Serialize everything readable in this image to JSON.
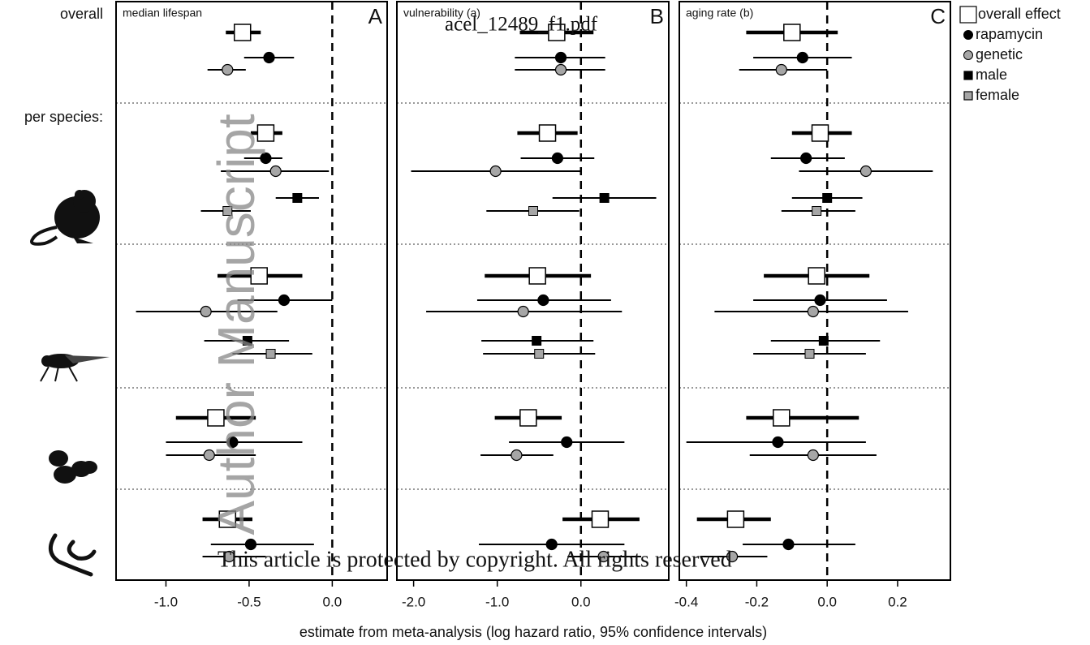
{
  "chart_data": {
    "type": "forest",
    "xlabel": "estimate from meta-analysis (log hazard ratio, 95% confidence intervals)",
    "row_labels": [
      "overall",
      "per species:"
    ],
    "legend": [
      {
        "name": "overall effect",
        "marker": "square",
        "color": "#ffffff"
      },
      {
        "name": "rapamycin",
        "marker": "circle",
        "color": "#000000"
      },
      {
        "name": "genetic",
        "marker": "circle",
        "color": "#a6a6a6"
      },
      {
        "name": "male",
        "marker": "square",
        "color": "#000000"
      },
      {
        "name": "female",
        "marker": "square",
        "color": "#a6a6a6"
      }
    ],
    "watermarks": [
      "acel_12489_f1.pdf",
      "Author Manuscript",
      "This article is protected by copyright. All rights reserved"
    ],
    "panels": [
      {
        "title": "median lifespan",
        "letter": "A",
        "xlim": [
          -1.3,
          0.33
        ],
        "xticks": [
          -1.0,
          -0.5,
          0.0
        ],
        "ref_line": 0,
        "groups": [
          [
            {
              "series": 0,
              "est": -0.54,
              "lo": -0.64,
              "hi": -0.43
            },
            {
              "series": 1,
              "est": -0.38,
              "lo": -0.53,
              "hi": -0.23
            },
            {
              "series": 2,
              "est": -0.63,
              "lo": -0.75,
              "hi": -0.52
            }
          ],
          [
            {
              "series": 0,
              "est": -0.4,
              "lo": -0.49,
              "hi": -0.3
            },
            {
              "series": 1,
              "est": -0.4,
              "lo": -0.53,
              "hi": -0.3
            },
            {
              "series": 2,
              "est": -0.34,
              "lo": -0.67,
              "hi": -0.02
            },
            {
              "series": 3,
              "est": -0.21,
              "lo": -0.34,
              "hi": -0.08
            },
            {
              "series": 4,
              "est": -0.63,
              "lo": -0.79,
              "hi": -0.49
            }
          ],
          [
            {
              "series": 0,
              "est": -0.44,
              "lo": -0.69,
              "hi": -0.18
            },
            {
              "series": 1,
              "est": -0.29,
              "lo": -0.57,
              "hi": 0.0
            },
            {
              "series": 2,
              "est": -0.76,
              "lo": -1.18,
              "hi": -0.33
            },
            {
              "series": 3,
              "est": -0.51,
              "lo": -0.77,
              "hi": -0.26
            },
            {
              "series": 4,
              "est": -0.37,
              "lo": -0.6,
              "hi": -0.12
            }
          ],
          [
            {
              "series": 0,
              "est": -0.7,
              "lo": -0.94,
              "hi": -0.46
            },
            {
              "series": 1,
              "est": -0.6,
              "lo": -1.0,
              "hi": -0.18
            },
            {
              "series": 2,
              "est": -0.74,
              "lo": -1.0,
              "hi": -0.46
            }
          ],
          [
            {
              "series": 0,
              "est": -0.63,
              "lo": -0.78,
              "hi": -0.48
            },
            {
              "series": 1,
              "est": -0.49,
              "lo": -0.73,
              "hi": -0.11
            },
            {
              "series": 2,
              "est": -0.62,
              "lo": -0.78,
              "hi": -0.4
            }
          ]
        ]
      },
      {
        "title": "vulnerability (a)",
        "letter": "B",
        "xlim": [
          -2.2,
          1.05
        ],
        "xticks": [
          -2.0,
          -1.0,
          0.0
        ],
        "ref_line": 0,
        "groups": [
          [
            {
              "series": 0,
              "est": -0.29,
              "lo": -0.73,
              "hi": 0.15
            },
            {
              "series": 1,
              "est": -0.24,
              "lo": -0.79,
              "hi": 0.29
            },
            {
              "series": 2,
              "est": -0.24,
              "lo": -0.79,
              "hi": 0.29
            }
          ],
          [
            {
              "series": 0,
              "est": -0.4,
              "lo": -0.76,
              "hi": -0.04
            },
            {
              "series": 1,
              "est": -0.28,
              "lo": -0.72,
              "hi": 0.16
            },
            {
              "series": 2,
              "est": -1.02,
              "lo": -2.03,
              "hi": 0.0
            },
            {
              "series": 3,
              "est": 0.28,
              "lo": -0.34,
              "hi": 0.9
            },
            {
              "series": 4,
              "est": -0.57,
              "lo": -1.13,
              "hi": -0.02
            }
          ],
          [
            {
              "series": 0,
              "est": -0.52,
              "lo": -1.15,
              "hi": 0.12
            },
            {
              "series": 1,
              "est": -0.45,
              "lo": -1.24,
              "hi": 0.36
            },
            {
              "series": 2,
              "est": -0.69,
              "lo": -1.85,
              "hi": 0.49
            },
            {
              "series": 3,
              "est": -0.53,
              "lo": -1.19,
              "hi": 0.15
            },
            {
              "series": 4,
              "est": -0.5,
              "lo": -1.17,
              "hi": 0.17
            }
          ],
          [
            {
              "series": 0,
              "est": -0.63,
              "lo": -1.03,
              "hi": -0.23
            },
            {
              "series": 1,
              "est": -0.17,
              "lo": -0.86,
              "hi": 0.52
            },
            {
              "series": 2,
              "est": -0.77,
              "lo": -1.2,
              "hi": -0.33
            }
          ],
          [
            {
              "series": 0,
              "est": 0.23,
              "lo": -0.22,
              "hi": 0.7
            },
            {
              "series": 1,
              "est": -0.35,
              "lo": -1.22,
              "hi": 0.52
            },
            {
              "series": 2,
              "est": 0.27,
              "lo": -0.16,
              "hi": 0.72
            }
          ]
        ]
      },
      {
        "title": "aging rate (b)",
        "letter": "C",
        "xlim": [
          -0.42,
          0.35
        ],
        "xticks": [
          -0.4,
          -0.2,
          0.0,
          0.2
        ],
        "ref_line": 0,
        "groups": [
          [
            {
              "series": 0,
              "est": -0.1,
              "lo": -0.23,
              "hi": 0.03
            },
            {
              "series": 1,
              "est": -0.07,
              "lo": -0.21,
              "hi": 0.07
            },
            {
              "series": 2,
              "est": -0.13,
              "lo": -0.25,
              "hi": 0.0
            }
          ],
          [
            {
              "series": 0,
              "est": -0.02,
              "lo": -0.1,
              "hi": 0.07
            },
            {
              "series": 1,
              "est": -0.06,
              "lo": -0.16,
              "hi": 0.05
            },
            {
              "series": 2,
              "est": 0.11,
              "lo": -0.08,
              "hi": 0.3
            },
            {
              "series": 3,
              "est": 0.0,
              "lo": -0.1,
              "hi": 0.1
            },
            {
              "series": 4,
              "est": -0.03,
              "lo": -0.13,
              "hi": 0.08
            }
          ],
          [
            {
              "series": 0,
              "est": -0.03,
              "lo": -0.18,
              "hi": 0.12
            },
            {
              "series": 1,
              "est": -0.02,
              "lo": -0.21,
              "hi": 0.17
            },
            {
              "series": 2,
              "est": -0.04,
              "lo": -0.32,
              "hi": 0.23
            },
            {
              "series": 3,
              "est": -0.01,
              "lo": -0.16,
              "hi": 0.15
            },
            {
              "series": 4,
              "est": -0.05,
              "lo": -0.21,
              "hi": 0.11
            }
          ],
          [
            {
              "series": 0,
              "est": -0.13,
              "lo": -0.23,
              "hi": 0.09
            },
            {
              "series": 1,
              "est": -0.14,
              "lo": -0.4,
              "hi": 0.11
            },
            {
              "series": 2,
              "est": -0.04,
              "lo": -0.22,
              "hi": 0.14
            }
          ],
          [
            {
              "series": 0,
              "est": -0.26,
              "lo": -0.37,
              "hi": -0.16
            },
            {
              "series": 1,
              "est": -0.11,
              "lo": -0.24,
              "hi": 0.08
            },
            {
              "series": 2,
              "est": -0.27,
              "lo": -0.36,
              "hi": -0.17
            }
          ]
        ]
      }
    ]
  }
}
